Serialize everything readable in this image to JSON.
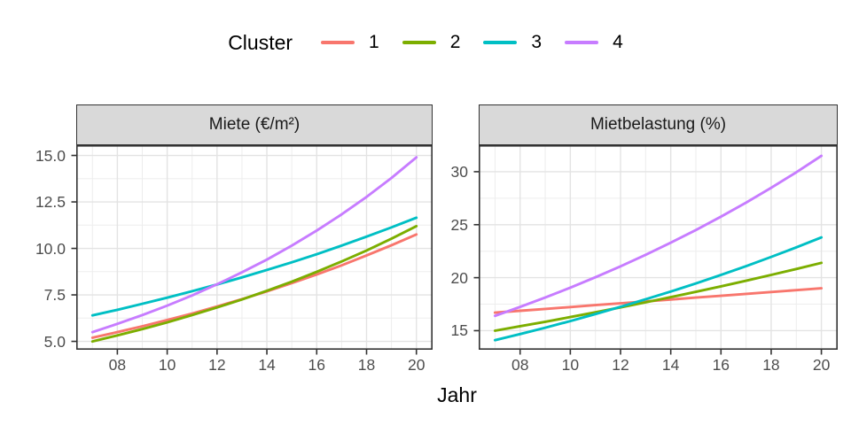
{
  "chart_data": {
    "type": "line",
    "xlabel": "Jahr",
    "x_years": [
      7,
      8,
      9,
      10,
      11,
      12,
      13,
      14,
      15,
      16,
      17,
      18,
      19,
      20
    ],
    "xlim": [
      6.35,
      20.65
    ],
    "x_major_ticks": [
      8,
      10,
      12,
      14,
      16,
      18,
      20
    ],
    "x_tick_labels": [
      "08",
      "10",
      "12",
      "14",
      "16",
      "18",
      "20"
    ],
    "x_minor_ticks": [
      7,
      9,
      11,
      13,
      15,
      17,
      19
    ],
    "grid": true,
    "legend": {
      "title": "Cluster",
      "position": "top",
      "entries": [
        {
          "label": "1",
          "color": "#F8766D"
        },
        {
          "label": "2",
          "color": "#7CAE00"
        },
        {
          "label": "3",
          "color": "#00BFC4"
        },
        {
          "label": "4",
          "color": "#C77CFF"
        }
      ]
    },
    "panels": [
      {
        "title": "Miete (€/m²)",
        "ylim": [
          4.55,
          15.55
        ],
        "y_major_ticks": [
          5.0,
          7.5,
          10.0,
          12.5,
          15.0
        ],
        "y_tick_labels": [
          "5.0",
          "7.5",
          "10.0",
          "12.5",
          "15.0"
        ],
        "y_minor_ticks": [
          6.25,
          8.75,
          11.25,
          13.75
        ],
        "series": [
          {
            "name": "1",
            "color": "#F8766D",
            "values": [
              5.2,
              5.5,
              5.81,
              6.15,
              6.5,
              6.88,
              7.27,
              7.69,
              8.13,
              8.6,
              9.09,
              9.62,
              10.17,
              10.75
            ]
          },
          {
            "name": "2",
            "color": "#7CAE00",
            "values": [
              5.0,
              5.32,
              5.66,
              6.02,
              6.41,
              6.82,
              7.25,
              7.72,
              8.21,
              8.74,
              9.3,
              9.89,
              10.52,
              11.2
            ]
          },
          {
            "name": "3",
            "color": "#00BFC4",
            "values": [
              6.4,
              6.7,
              7.02,
              7.35,
              7.7,
              8.06,
              8.44,
              8.84,
              9.25,
              9.69,
              10.15,
              10.63,
              11.13,
              11.65
            ]
          },
          {
            "name": "4",
            "color": "#C77CFF",
            "values": [
              5.5,
              5.94,
              6.41,
              6.92,
              7.47,
              8.07,
              8.71,
              9.4,
              10.15,
              10.96,
              11.83,
              12.77,
              13.79,
              14.9
            ]
          }
        ]
      },
      {
        "title": "Mietbelastung (%)",
        "ylim": [
          13.2,
          32.5
        ],
        "y_major_ticks": [
          15,
          20,
          25,
          30
        ],
        "y_tick_labels": [
          "15",
          "20",
          "25",
          "30"
        ],
        "y_minor_ticks": [
          17.5,
          22.5,
          27.5,
          32.5
        ],
        "series": [
          {
            "name": "1",
            "color": "#F8766D",
            "values": [
              16.7,
              16.88,
              17.05,
              17.23,
              17.41,
              17.58,
              17.76,
              17.94,
              18.12,
              18.29,
              18.47,
              18.65,
              18.82,
              19.0
            ]
          },
          {
            "name": "2",
            "color": "#7CAE00",
            "values": [
              15.0,
              15.42,
              15.84,
              16.28,
              16.73,
              17.19,
              17.67,
              18.16,
              18.66,
              19.18,
              19.71,
              20.26,
              20.82,
              21.4
            ]
          },
          {
            "name": "3",
            "color": "#00BFC4",
            "values": [
              14.1,
              14.68,
              15.28,
              15.91,
              16.57,
              17.25,
              17.96,
              18.69,
              19.46,
              20.26,
              21.09,
              21.96,
              22.86,
              23.8
            ]
          },
          {
            "name": "4",
            "color": "#C77CFF",
            "values": [
              16.4,
              17.24,
              18.13,
              19.06,
              20.04,
              21.07,
              22.16,
              23.3,
              24.5,
              25.76,
              27.08,
              28.48,
              29.94,
              31.5
            ]
          }
        ]
      }
    ],
    "style_colors": {
      "strip_background": "#D9D9D9",
      "panel_border": "#333333",
      "grid_major": "#E3E3E3",
      "grid_minor": "#EDEDED",
      "axis_text": "#4D4D4D",
      "tick_mark": "#333333"
    }
  }
}
